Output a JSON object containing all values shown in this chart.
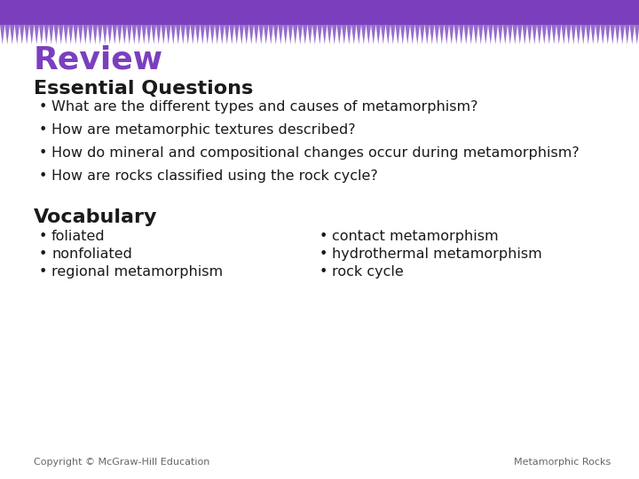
{
  "title": "Review",
  "title_color": "#7B3FBE",
  "title_fontsize": 26,
  "bg_color": "#FFFFFF",
  "header_color": "#7B3FBE",
  "zigzag_color": "#8B5DC8",
  "section1": "Essential Questions",
  "section1_fontsize": 16,
  "section1_color": "#1a1a1a",
  "eq_bullets": [
    "What are the different types and causes of metamorphism?",
    "How are metamorphic textures described?",
    "How do mineral and compositional changes occur during metamorphism?",
    "How are rocks classified using the rock cycle?"
  ],
  "eq_fontsize": 11.5,
  "eq_color": "#1a1a1a",
  "section2": "Vocabulary",
  "section2_fontsize": 16,
  "section2_color": "#1a1a1a",
  "vocab_left": [
    "foliated",
    "nonfoliated",
    "regional metamorphism"
  ],
  "vocab_right": [
    "contact metamorphism",
    "hydrothermal metamorphism",
    "rock cycle"
  ],
  "vocab_fontsize": 11.5,
  "vocab_color": "#1a1a1a",
  "footer_left": "Copyright © McGraw-Hill Education",
  "footer_right": "Metamorphic Rocks",
  "footer_fontsize": 8,
  "footer_color": "#666666"
}
